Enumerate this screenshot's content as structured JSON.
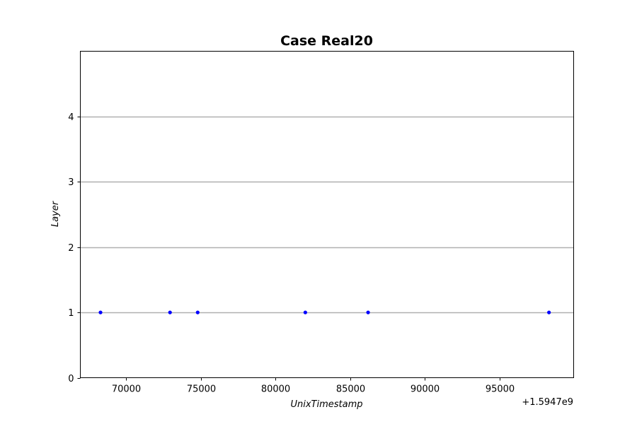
{
  "chart_data": {
    "type": "scatter",
    "title": "Case Real20",
    "xlabel": "UnixTimestamp",
    "ylabel": "Layer",
    "x_offset_label": "+1.5947e9",
    "xlim": [
      1594766950,
      1594799950
    ],
    "ylim": [
      0,
      5
    ],
    "x_ticks": [
      1594770000,
      1594775000,
      1594780000,
      1594785000,
      1594790000,
      1594795000
    ],
    "x_tick_labels": [
      "70000",
      "75000",
      "80000",
      "85000",
      "90000",
      "95000"
    ],
    "y_ticks": [
      0,
      1,
      2,
      3,
      4
    ],
    "y_tick_labels": [
      "0",
      "1",
      "2",
      "3",
      "4"
    ],
    "grid": "horizontal",
    "colors": {
      "points": "#0000ff",
      "grid": "#b0b0b0"
    },
    "series": [
      {
        "points": [
          {
            "x": 1594768300,
            "y": 1
          },
          {
            "x": 1594772950,
            "y": 1
          },
          {
            "x": 1594774800,
            "y": 1
          },
          {
            "x": 1594782000,
            "y": 1
          },
          {
            "x": 1594786200,
            "y": 1
          },
          {
            "x": 1594798300,
            "y": 1
          }
        ]
      }
    ]
  }
}
